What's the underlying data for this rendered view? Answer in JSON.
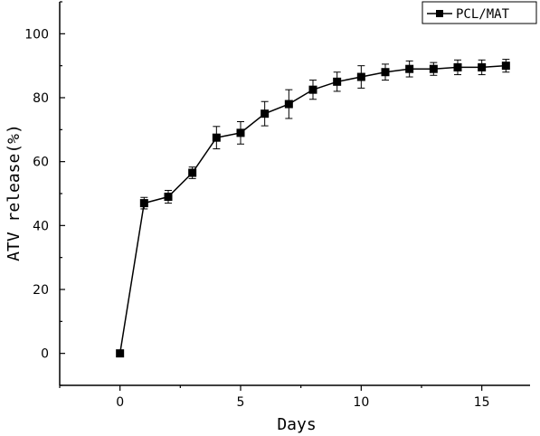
{
  "chart_data": {
    "type": "line",
    "title": "",
    "xlabel": "Days",
    "ylabel": "ATV release(%)",
    "xlim": [
      -2.5,
      17
    ],
    "ylim": [
      -10,
      110
    ],
    "xticks": [
      0,
      5,
      10,
      15
    ],
    "yticks": [
      0,
      20,
      40,
      60,
      80,
      100
    ],
    "grid": false,
    "legend_position": "top-right",
    "series": [
      {
        "name": "PCL/MAT",
        "x": [
          0,
          1,
          2,
          3,
          4,
          5,
          6,
          7,
          8,
          9,
          10,
          11,
          12,
          13,
          14,
          15,
          16
        ],
        "y": [
          0,
          47,
          49,
          56.5,
          67.5,
          69,
          75,
          78,
          82.5,
          85,
          86.5,
          88,
          89,
          89,
          89.5,
          89.5,
          90
        ],
        "error": [
          0,
          1.8,
          2,
          1.8,
          3.5,
          3.5,
          3.8,
          4.5,
          3,
          3,
          3.5,
          2.5,
          2.5,
          2,
          2.3,
          2.3,
          2
        ],
        "color": "#000000",
        "marker": "square"
      }
    ]
  }
}
